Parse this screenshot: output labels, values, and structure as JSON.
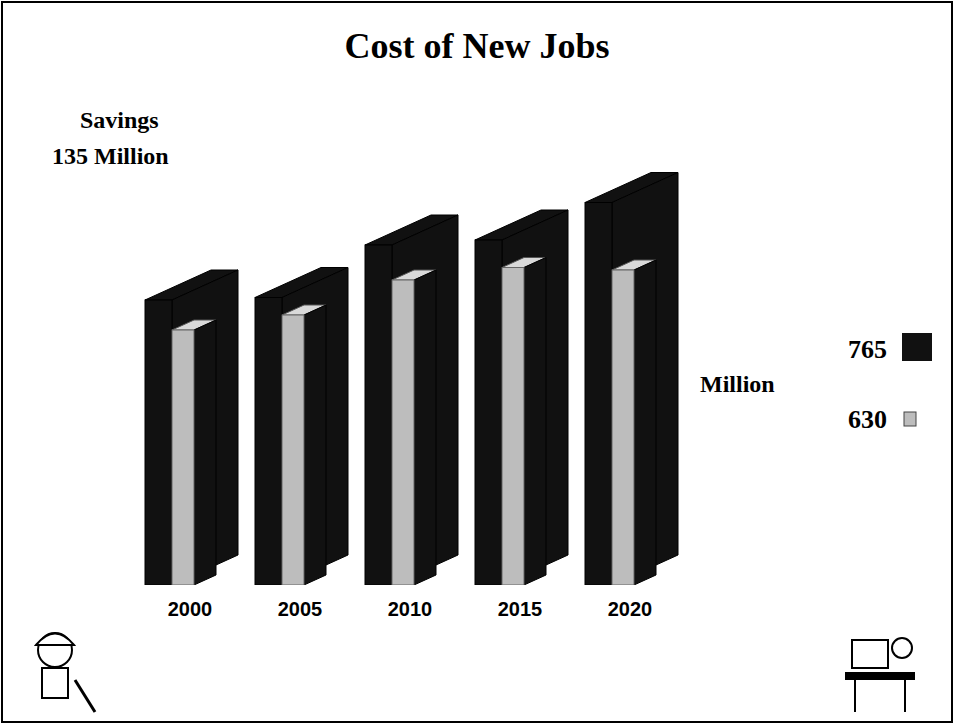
{
  "chart_data": {
    "type": "bar",
    "title": "Cost of New Jobs",
    "annotations": [
      "Savings",
      "135 Million",
      "Million"
    ],
    "categories": [
      "2000",
      "2005",
      "2010",
      "2015",
      "2020"
    ],
    "series": [
      {
        "name": "765",
        "color": "#111111",
        "values": [
          570,
          575,
          680,
          690,
          765
        ]
      },
      {
        "name": "630",
        "color": "#bdbdbd",
        "values": [
          510,
          540,
          610,
          635,
          630
        ]
      }
    ],
    "ylim": [
      0,
      800
    ],
    "tick_labels": false,
    "legend": "right",
    "grid": false
  }
}
